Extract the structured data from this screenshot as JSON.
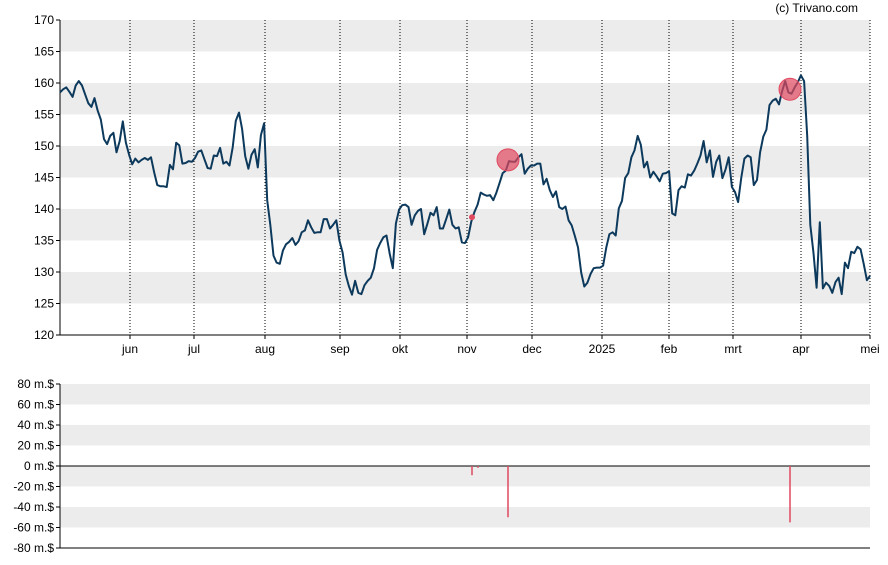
{
  "watermark": "(c) Trivano.com",
  "colors": {
    "line": "#0d3a5c",
    "band": "#ececec",
    "marker": "#e0485f",
    "bar": "#e0485f"
  },
  "chart_data": [
    {
      "type": "line",
      "name": "price",
      "ylim": [
        120,
        170
      ],
      "yticks": [
        "120",
        "125",
        "130",
        "135",
        "140",
        "145",
        "150",
        "155",
        "160",
        "165",
        "170"
      ],
      "months": [
        "jun",
        "jul",
        "aug",
        "sep",
        "okt",
        "nov",
        "dec",
        "2025",
        "feb",
        "mrt",
        "apr",
        "mei"
      ],
      "grid": "horizontal-bands-and-dotted-monthly",
      "values": [
        158.5,
        159,
        159.3,
        158.6,
        157.8,
        159.6,
        160.3,
        159.6,
        158.2,
        156.8,
        156.2,
        157.6,
        155.6,
        154.2,
        151.1,
        150.3,
        151.6,
        152.1,
        149,
        150.8,
        153.9,
        150.5,
        148.6,
        147.1,
        148,
        147.4,
        147.8,
        148.1,
        147.8,
        148.2,
        145.8,
        143.8,
        143.6,
        143.6,
        143.5,
        147,
        146.3,
        150.5,
        150.1,
        147.2,
        147.3,
        147.6,
        147.5,
        148.1,
        149.1,
        149.3,
        147.9,
        146.5,
        146.4,
        148.5,
        148.4,
        149.7,
        147.2,
        147.5,
        146.9,
        149.8,
        154,
        155.3,
        152.7,
        148.4,
        146.4,
        148.6,
        149.5,
        146.6,
        151.7,
        153.6,
        141.4,
        137.5,
        132.6,
        131.5,
        131.3,
        133.4,
        134.4,
        134.8,
        135.4,
        134.3,
        134.9,
        136.3,
        136.6,
        138.2,
        137.1,
        136.2,
        136.3,
        136.3,
        138.4,
        138.4,
        136.9,
        137.5,
        138.2,
        135,
        133.1,
        129.6,
        127.8,
        126.4,
        128.6,
        126.7,
        126.5,
        127.9,
        128.6,
        129.1,
        130.6,
        133.5,
        134.6,
        135.5,
        135.8,
        132.9,
        130.6,
        137.7,
        139.9,
        140.6,
        140.7,
        140.3,
        137.5,
        139,
        139.7,
        140,
        136,
        137.6,
        139.4,
        139,
        140.3,
        136.9,
        136.9,
        138.4,
        139.9,
        137.5,
        136.9,
        137.1,
        134.7,
        134.6,
        135.5,
        138,
        139.5,
        140.7,
        142.6,
        142.3,
        142.1,
        142.2,
        141.4,
        142.6,
        144.1,
        145.7,
        146.1,
        147.6,
        147.5,
        147.5,
        148.2,
        148.7,
        145.6,
        146.4,
        146.9,
        146.9,
        147.2,
        147.2,
        143.9,
        144.8,
        143,
        141.9,
        142.8,
        140.3,
        140,
        140.4,
        138.2,
        137.4,
        135.7,
        133.9,
        129.9,
        127.7,
        128.3,
        129.7,
        130.6,
        130.7,
        130.7,
        131,
        133.9,
        136,
        136.3,
        135.8,
        140.1,
        141.3,
        144.9,
        145.7,
        148.2,
        149.3,
        151.6,
        150.2,
        146.6,
        147.5,
        145,
        145.9,
        145.2,
        144.4,
        145.6,
        145.7,
        146,
        139.3,
        139,
        143,
        143.6,
        143.4,
        145.5,
        145.3,
        146.1,
        147.2,
        148.5,
        150.8,
        147.4,
        149.3,
        145.1,
        147.5,
        148.5,
        144.9,
        146.3,
        148.2,
        143.5,
        142.7,
        141.1,
        145,
        148,
        148.5,
        148.2,
        143.8,
        144.6,
        149,
        151.5,
        152.6,
        156.5,
        157.2,
        157.5,
        156.6,
        158.7,
        160.3,
        158.5,
        158.3,
        159.3,
        160.1,
        161.2,
        160.3,
        151.6,
        137.5,
        133,
        127.5,
        137.9,
        127.4,
        128.3,
        127.8,
        126.7,
        128.4,
        129.1,
        126.5,
        131.5,
        130.6,
        133.2,
        133,
        134,
        133.6,
        131.3,
        128.7,
        129.4
      ],
      "events": [
        {
          "month": "nov",
          "value": 138.7,
          "size": "small"
        },
        {
          "month": "nov",
          "value": 147.8,
          "size": "large"
        },
        {
          "month": "apr",
          "value": 159.0,
          "size": "large"
        }
      ]
    },
    {
      "type": "bar",
      "name": "volume",
      "ylim": [
        -80,
        80
      ],
      "yticks": [
        "-80 m.$",
        "-60 m.$",
        "-40 m.$",
        "-20 m.$",
        "0 m.$",
        "20 m.$",
        "40 m.$",
        "60 m.$",
        "80 m.$"
      ],
      "values": [
        -9,
        -50,
        -55
      ]
    }
  ]
}
